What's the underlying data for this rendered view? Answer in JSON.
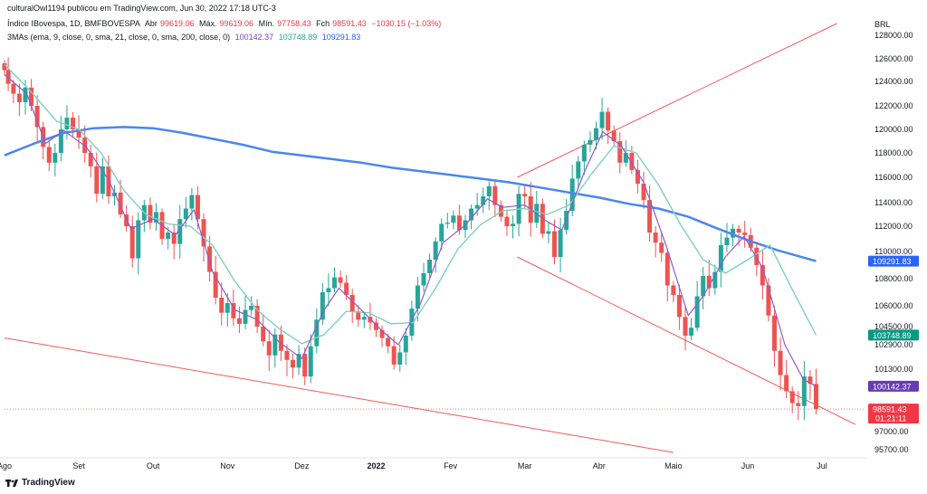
{
  "header": {
    "line1": "culturalOwl1194 publicou em TradingView.com, Jun 30, 2022 17:18 UTC-3",
    "symbol": "Índice IBovespa, 1D, BMFBOVESPA",
    "open_label": "Abr",
    "open_value": "99619.06",
    "high_label": "Máx.",
    "high_value": "99619.06",
    "low_label": "Mín.",
    "low_value": "97758.43",
    "close_label": "Fch",
    "close_value": "98591.43",
    "change": "−1030.15 (−1.03%)",
    "indicator": "3MAs (ema, 9, close, 0, sma, 21, close, 0, sma, 200, close, 0)",
    "ma1_value": "100142.37",
    "ma2_value": "103748.89",
    "ma3_value": "109291.83"
  },
  "brand": "TradingView",
  "colors": {
    "up": "#26a69a",
    "down": "#ef5350",
    "ema9": "#8e5ccc",
    "sma21": "#7fcfc0",
    "sma200": "#4a86f0",
    "trendline": "#f05a5a"
  },
  "chart_data": {
    "type": "candlestick",
    "currency": "BRL",
    "y_ticks": [
      95700,
      97000,
      98600,
      101300,
      102900,
      104500,
      106000,
      108000,
      110000,
      112000,
      114000,
      116000,
      118000,
      120000,
      122000,
      124000,
      126000,
      128000
    ],
    "y_tick_labels": [
      "95700.00",
      "97000.00",
      "98600.00",
      "101300.00",
      "102900.00",
      "104500.00",
      "106000.00",
      "108000.00",
      "110000.00",
      "112000.00",
      "114000.00",
      "116000.00",
      "118000.00",
      "120000.00",
      "122000.00",
      "124000.00",
      "126000.00",
      "128000.00"
    ],
    "ylim": [
      94500,
      129300
    ],
    "x_labels": [
      "Ago",
      "Set",
      "Out",
      "Nov",
      "Dez",
      "2022",
      "Fev",
      "Mar",
      "Abr",
      "Maio",
      "Jun",
      "Jul"
    ],
    "x_label_months": [
      0,
      1,
      2,
      3,
      4,
      5,
      6,
      7,
      8,
      9,
      10,
      11
    ],
    "xlim_months": [
      0,
      11.45
    ],
    "price_tags": [
      {
        "label": "109291.83",
        "value": 109291.83,
        "color": "#2962ff"
      },
      {
        "label": "103748.89",
        "value": 103748.89,
        "color": "#089981"
      },
      {
        "label": "100142.37",
        "value": 100142.37,
        "color": "#673ab7"
      },
      {
        "label": "98591.43",
        "value": 98591.43,
        "color": "#f23645",
        "sub": "01:21:11"
      }
    ],
    "last_price": 98591.43,
    "closes": [
      {
        "m": 0.0,
        "v": 125000
      },
      {
        "m": 0.05,
        "v": 123800
      },
      {
        "m": 0.12,
        "v": 123000
      },
      {
        "m": 0.2,
        "v": 122300
      },
      {
        "m": 0.28,
        "v": 123500
      },
      {
        "m": 0.36,
        "v": 122000
      },
      {
        "m": 0.44,
        "v": 120200
      },
      {
        "m": 0.52,
        "v": 118500
      },
      {
        "m": 0.6,
        "v": 117200
      },
      {
        "m": 0.68,
        "v": 118000
      },
      {
        "m": 0.76,
        "v": 120000
      },
      {
        "m": 0.84,
        "v": 121000
      },
      {
        "m": 0.92,
        "v": 120000
      },
      {
        "m": 1.0,
        "v": 119300
      },
      {
        "m": 1.08,
        "v": 118000
      },
      {
        "m": 1.16,
        "v": 116900
      },
      {
        "m": 1.24,
        "v": 114700
      },
      {
        "m": 1.32,
        "v": 116900
      },
      {
        "m": 1.4,
        "v": 114500
      },
      {
        "m": 1.48,
        "v": 114800
      },
      {
        "m": 1.56,
        "v": 113000
      },
      {
        "m": 1.64,
        "v": 112000
      },
      {
        "m": 1.72,
        "v": 109500
      },
      {
        "m": 1.8,
        "v": 112500
      },
      {
        "m": 1.88,
        "v": 113800
      },
      {
        "m": 1.96,
        "v": 112300
      },
      {
        "m": 2.04,
        "v": 113200
      },
      {
        "m": 2.12,
        "v": 111000
      },
      {
        "m": 2.2,
        "v": 111500
      },
      {
        "m": 2.28,
        "v": 110600
      },
      {
        "m": 2.36,
        "v": 112600
      },
      {
        "m": 2.44,
        "v": 113500
      },
      {
        "m": 2.52,
        "v": 114600
      },
      {
        "m": 2.6,
        "v": 112600
      },
      {
        "m": 2.68,
        "v": 110400
      },
      {
        "m": 2.76,
        "v": 108500
      },
      {
        "m": 2.84,
        "v": 106600
      },
      {
        "m": 2.92,
        "v": 105500
      },
      {
        "m": 3.0,
        "v": 106200
      },
      {
        "m": 3.08,
        "v": 105100
      },
      {
        "m": 3.16,
        "v": 104700
      },
      {
        "m": 3.24,
        "v": 105700
      },
      {
        "m": 3.32,
        "v": 106000
      },
      {
        "m": 3.4,
        "v": 104500
      },
      {
        "m": 3.48,
        "v": 103200
      },
      {
        "m": 3.56,
        "v": 102200
      },
      {
        "m": 3.64,
        "v": 103800
      },
      {
        "m": 3.72,
        "v": 102500
      },
      {
        "m": 3.8,
        "v": 101900
      },
      {
        "m": 3.88,
        "v": 101400
      },
      {
        "m": 3.96,
        "v": 102300
      },
      {
        "m": 4.04,
        "v": 100800
      },
      {
        "m": 4.12,
        "v": 102800
      },
      {
        "m": 4.2,
        "v": 105000
      },
      {
        "m": 4.28,
        "v": 107000
      },
      {
        "m": 4.36,
        "v": 107300
      },
      {
        "m": 4.44,
        "v": 108100
      },
      {
        "m": 4.52,
        "v": 107700
      },
      {
        "m": 4.6,
        "v": 106800
      },
      {
        "m": 4.68,
        "v": 105600
      },
      {
        "m": 4.76,
        "v": 105000
      },
      {
        "m": 4.84,
        "v": 105200
      },
      {
        "m": 4.92,
        "v": 104800
      },
      {
        "m": 5.0,
        "v": 104200
      },
      {
        "m": 5.08,
        "v": 103500
      },
      {
        "m": 5.16,
        "v": 102800
      },
      {
        "m": 5.24,
        "v": 101600
      },
      {
        "m": 5.32,
        "v": 102400
      },
      {
        "m": 5.4,
        "v": 103700
      },
      {
        "m": 5.48,
        "v": 105800
      },
      {
        "m": 5.56,
        "v": 107500
      },
      {
        "m": 5.64,
        "v": 108400
      },
      {
        "m": 5.72,
        "v": 109400
      },
      {
        "m": 5.8,
        "v": 110800
      },
      {
        "m": 5.88,
        "v": 112200
      },
      {
        "m": 5.96,
        "v": 112300
      },
      {
        "m": 6.04,
        "v": 112900
      },
      {
        "m": 6.12,
        "v": 111700
      },
      {
        "m": 6.2,
        "v": 112500
      },
      {
        "m": 6.28,
        "v": 113500
      },
      {
        "m": 6.36,
        "v": 113800
      },
      {
        "m": 6.44,
        "v": 114500
      },
      {
        "m": 6.52,
        "v": 115300
      },
      {
        "m": 6.6,
        "v": 113800
      },
      {
        "m": 6.68,
        "v": 112800
      },
      {
        "m": 6.76,
        "v": 112000
      },
      {
        "m": 6.84,
        "v": 112200
      },
      {
        "m": 6.92,
        "v": 114700
      },
      {
        "m": 7.0,
        "v": 114500
      },
      {
        "m": 7.08,
        "v": 112300
      },
      {
        "m": 7.16,
        "v": 113900
      },
      {
        "m": 7.24,
        "v": 111400
      },
      {
        "m": 7.32,
        "v": 111600
      },
      {
        "m": 7.4,
        "v": 109600
      },
      {
        "m": 7.48,
        "v": 111700
      },
      {
        "m": 7.56,
        "v": 113300
      },
      {
        "m": 7.64,
        "v": 115900
      },
      {
        "m": 7.72,
        "v": 117300
      },
      {
        "m": 7.8,
        "v": 118700
      },
      {
        "m": 7.88,
        "v": 119100
      },
      {
        "m": 7.96,
        "v": 120100
      },
      {
        "m": 8.04,
        "v": 121500
      },
      {
        "m": 8.12,
        "v": 119900
      },
      {
        "m": 8.2,
        "v": 119000
      },
      {
        "m": 8.28,
        "v": 117200
      },
      {
        "m": 8.36,
        "v": 118000
      },
      {
        "m": 8.44,
        "v": 116600
      },
      {
        "m": 8.52,
        "v": 115500
      },
      {
        "m": 8.6,
        "v": 114200
      },
      {
        "m": 8.68,
        "v": 111500
      },
      {
        "m": 8.76,
        "v": 110700
      },
      {
        "m": 8.84,
        "v": 109900
      },
      {
        "m": 8.92,
        "v": 107500
      },
      {
        "m": 9.0,
        "v": 106800
      },
      {
        "m": 9.08,
        "v": 105200
      },
      {
        "m": 9.16,
        "v": 103700
      },
      {
        "m": 9.24,
        "v": 104400
      },
      {
        "m": 9.32,
        "v": 106700
      },
      {
        "m": 9.4,
        "v": 108200
      },
      {
        "m": 9.48,
        "v": 107300
      },
      {
        "m": 9.56,
        "v": 108500
      },
      {
        "m": 9.64,
        "v": 110500
      },
      {
        "m": 9.72,
        "v": 111100
      },
      {
        "m": 9.8,
        "v": 111800
      },
      {
        "m": 9.88,
        "v": 111500
      },
      {
        "m": 9.96,
        "v": 111300
      },
      {
        "m": 10.04,
        "v": 110300
      },
      {
        "m": 10.12,
        "v": 109000
      },
      {
        "m": 10.2,
        "v": 107500
      },
      {
        "m": 10.28,
        "v": 105300
      },
      {
        "m": 10.36,
        "v": 102500
      },
      {
        "m": 10.44,
        "v": 100900
      },
      {
        "m": 10.52,
        "v": 99800
      },
      {
        "m": 10.6,
        "v": 99000
      },
      {
        "m": 10.68,
        "v": 98800
      },
      {
        "m": 10.76,
        "v": 100800
      },
      {
        "m": 10.84,
        "v": 100300
      },
      {
        "m": 10.92,
        "v": 98591.43
      }
    ],
    "ema9": [
      {
        "m": 0.0,
        "v": 124600
      },
      {
        "m": 0.3,
        "v": 123000
      },
      {
        "m": 0.55,
        "v": 118800
      },
      {
        "m": 0.8,
        "v": 119900
      },
      {
        "m": 1.1,
        "v": 118500
      },
      {
        "m": 1.4,
        "v": 115800
      },
      {
        "m": 1.7,
        "v": 111800
      },
      {
        "m": 2.0,
        "v": 112600
      },
      {
        "m": 2.3,
        "v": 111300
      },
      {
        "m": 2.55,
        "v": 113400
      },
      {
        "m": 2.8,
        "v": 108500
      },
      {
        "m": 3.1,
        "v": 105700
      },
      {
        "m": 3.4,
        "v": 105000
      },
      {
        "m": 3.7,
        "v": 103100
      },
      {
        "m": 4.0,
        "v": 102000
      },
      {
        "m": 4.3,
        "v": 105700
      },
      {
        "m": 4.5,
        "v": 107300
      },
      {
        "m": 4.8,
        "v": 105700
      },
      {
        "m": 5.1,
        "v": 104000
      },
      {
        "m": 5.3,
        "v": 102900
      },
      {
        "m": 5.6,
        "v": 106200
      },
      {
        "m": 5.9,
        "v": 110700
      },
      {
        "m": 6.2,
        "v": 112100
      },
      {
        "m": 6.5,
        "v": 114300
      },
      {
        "m": 6.7,
        "v": 113600
      },
      {
        "m": 7.0,
        "v": 113800
      },
      {
        "m": 7.3,
        "v": 112400
      },
      {
        "m": 7.5,
        "v": 111700
      },
      {
        "m": 7.8,
        "v": 116400
      },
      {
        "m": 8.05,
        "v": 119800
      },
      {
        "m": 8.3,
        "v": 118600
      },
      {
        "m": 8.6,
        "v": 115600
      },
      {
        "m": 8.9,
        "v": 110500
      },
      {
        "m": 9.2,
        "v": 105300
      },
      {
        "m": 9.4,
        "v": 106700
      },
      {
        "m": 9.7,
        "v": 109600
      },
      {
        "m": 9.95,
        "v": 111200
      },
      {
        "m": 10.2,
        "v": 108800
      },
      {
        "m": 10.5,
        "v": 102900
      },
      {
        "m": 10.75,
        "v": 100600
      },
      {
        "m": 10.92,
        "v": 100142.37
      }
    ],
    "sma21": [
      {
        "m": 0.0,
        "v": 125500
      },
      {
        "m": 0.35,
        "v": 123200
      },
      {
        "m": 0.7,
        "v": 120700
      },
      {
        "m": 1.0,
        "v": 120000
      },
      {
        "m": 1.3,
        "v": 118000
      },
      {
        "m": 1.6,
        "v": 115000
      },
      {
        "m": 1.9,
        "v": 113000
      },
      {
        "m": 2.2,
        "v": 112200
      },
      {
        "m": 2.5,
        "v": 112000
      },
      {
        "m": 2.8,
        "v": 110500
      },
      {
        "m": 3.1,
        "v": 107800
      },
      {
        "m": 3.4,
        "v": 105700
      },
      {
        "m": 3.7,
        "v": 104300
      },
      {
        "m": 4.0,
        "v": 103000
      },
      {
        "m": 4.3,
        "v": 103800
      },
      {
        "m": 4.6,
        "v": 105600
      },
      {
        "m": 4.9,
        "v": 105500
      },
      {
        "m": 5.2,
        "v": 104700
      },
      {
        "m": 5.5,
        "v": 104800
      },
      {
        "m": 5.8,
        "v": 107300
      },
      {
        "m": 6.1,
        "v": 110200
      },
      {
        "m": 6.4,
        "v": 112100
      },
      {
        "m": 6.7,
        "v": 113300
      },
      {
        "m": 7.0,
        "v": 113500
      },
      {
        "m": 7.3,
        "v": 113000
      },
      {
        "m": 7.6,
        "v": 113800
      },
      {
        "m": 7.9,
        "v": 116300
      },
      {
        "m": 8.2,
        "v": 118600
      },
      {
        "m": 8.5,
        "v": 118000
      },
      {
        "m": 8.8,
        "v": 115400
      },
      {
        "m": 9.1,
        "v": 112100
      },
      {
        "m": 9.4,
        "v": 109400
      },
      {
        "m": 9.7,
        "v": 108400
      },
      {
        "m": 10.0,
        "v": 109400
      },
      {
        "m": 10.3,
        "v": 110500
      },
      {
        "m": 10.6,
        "v": 107200
      },
      {
        "m": 10.92,
        "v": 103748.89
      }
    ],
    "sma200": [
      {
        "m": 0.0,
        "v": 117800
      },
      {
        "m": 0.4,
        "v": 118800
      },
      {
        "m": 0.8,
        "v": 119700
      },
      {
        "m": 1.2,
        "v": 120100
      },
      {
        "m": 1.6,
        "v": 120200
      },
      {
        "m": 2.0,
        "v": 120100
      },
      {
        "m": 2.4,
        "v": 119700
      },
      {
        "m": 2.8,
        "v": 119200
      },
      {
        "m": 3.2,
        "v": 118700
      },
      {
        "m": 3.6,
        "v": 118100
      },
      {
        "m": 4.0,
        "v": 117800
      },
      {
        "m": 4.4,
        "v": 117500
      },
      {
        "m": 4.8,
        "v": 117200
      },
      {
        "m": 5.2,
        "v": 116800
      },
      {
        "m": 5.6,
        "v": 116500
      },
      {
        "m": 6.0,
        "v": 116200
      },
      {
        "m": 6.4,
        "v": 115900
      },
      {
        "m": 6.8,
        "v": 115600
      },
      {
        "m": 7.2,
        "v": 115200
      },
      {
        "m": 7.6,
        "v": 114800
      },
      {
        "m": 8.0,
        "v": 114400
      },
      {
        "m": 8.4,
        "v": 113900
      },
      {
        "m": 8.8,
        "v": 113500
      },
      {
        "m": 9.2,
        "v": 112800
      },
      {
        "m": 9.6,
        "v": 111800
      },
      {
        "m": 10.0,
        "v": 110900
      },
      {
        "m": 10.4,
        "v": 110100
      },
      {
        "m": 10.92,
        "v": 109291.83
      }
    ],
    "trendlines": [
      {
        "from": {
          "m": 0.0,
          "v": 103500
        },
        "to": {
          "m": 9.0,
          "v": 95500
        }
      },
      {
        "from": {
          "m": 6.9,
          "v": 116000
        },
        "to": {
          "m": 11.2,
          "v": 129000
        }
      },
      {
        "from": {
          "m": 6.9,
          "v": 109600
        },
        "to": {
          "m": 11.45,
          "v": 97500
        }
      }
    ]
  }
}
